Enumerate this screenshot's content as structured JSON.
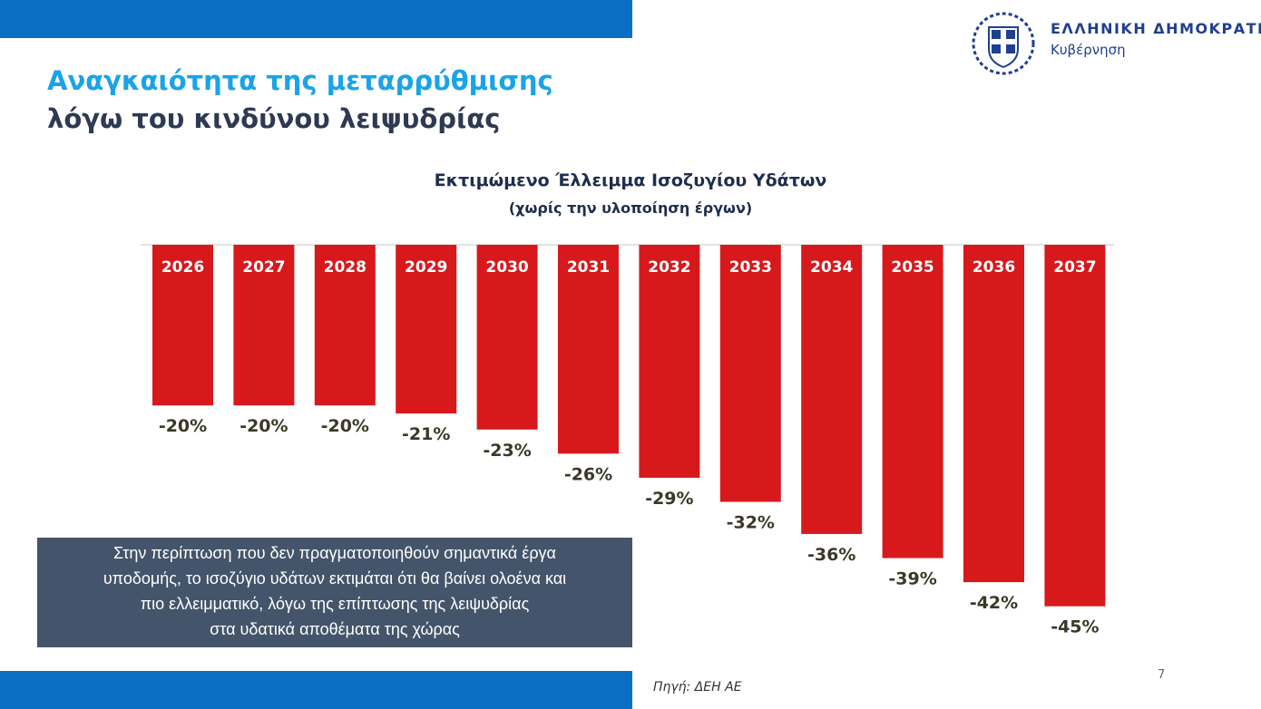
{
  "slide": {
    "title_line1": "Αναγκαιότητα της μεταρρύθμισης",
    "title_line2": "λόγω του κινδύνου λειψυδρίας",
    "logo": {
      "line1": "ΕΛΛΗΝΙΚΗ ΔΗΜΟΚΡΑΤΙΑ",
      "line2": "Κυβέρνηση"
    },
    "note": [
      "Στην περίπτωση που δεν πραγματοποιηθούν σημαντικά έργα",
      "υποδομής, το ισοζύγιο υδάτων εκτιμάται ότι θα βαίνει ολοένα και",
      "πιο ελλειμματικό, λόγω της επίπτωσης της λειψυδρίας",
      "στα υδατικά αποθέματα της χώρας"
    ],
    "source": "Πηγή: ΔΕΗ ΑΕ",
    "page_number": "7",
    "colors": {
      "accent_blue": "#0a6fc2",
      "title_cyan": "#1aa3e8",
      "bar_red": "#d7191c",
      "note_bg": "#44546a"
    }
  },
  "chart_data": {
    "type": "bar",
    "title": "Εκτιμώμενο Έλλειμμα Ισοζυγίου Υδάτων",
    "subtitle": "(χωρίς την υλοποίηση έργων)",
    "categories": [
      "2026",
      "2027",
      "2028",
      "2029",
      "2030",
      "2031",
      "2032",
      "2033",
      "2034",
      "2035",
      "2036",
      "2037"
    ],
    "values": [
      -20,
      -20,
      -20,
      -21,
      -23,
      -26,
      -29,
      -32,
      -36,
      -39,
      -42,
      -45
    ],
    "labels": [
      "-20%",
      "-20%",
      "-20%",
      "-21%",
      "-23%",
      "-26%",
      "-29%",
      "-32%",
      "-36%",
      "-39%",
      "-42%",
      "-45%"
    ],
    "unit": "%",
    "ylim": [
      -45,
      0
    ],
    "grid": false,
    "legend": "none",
    "bar_color": "#d7191c"
  }
}
